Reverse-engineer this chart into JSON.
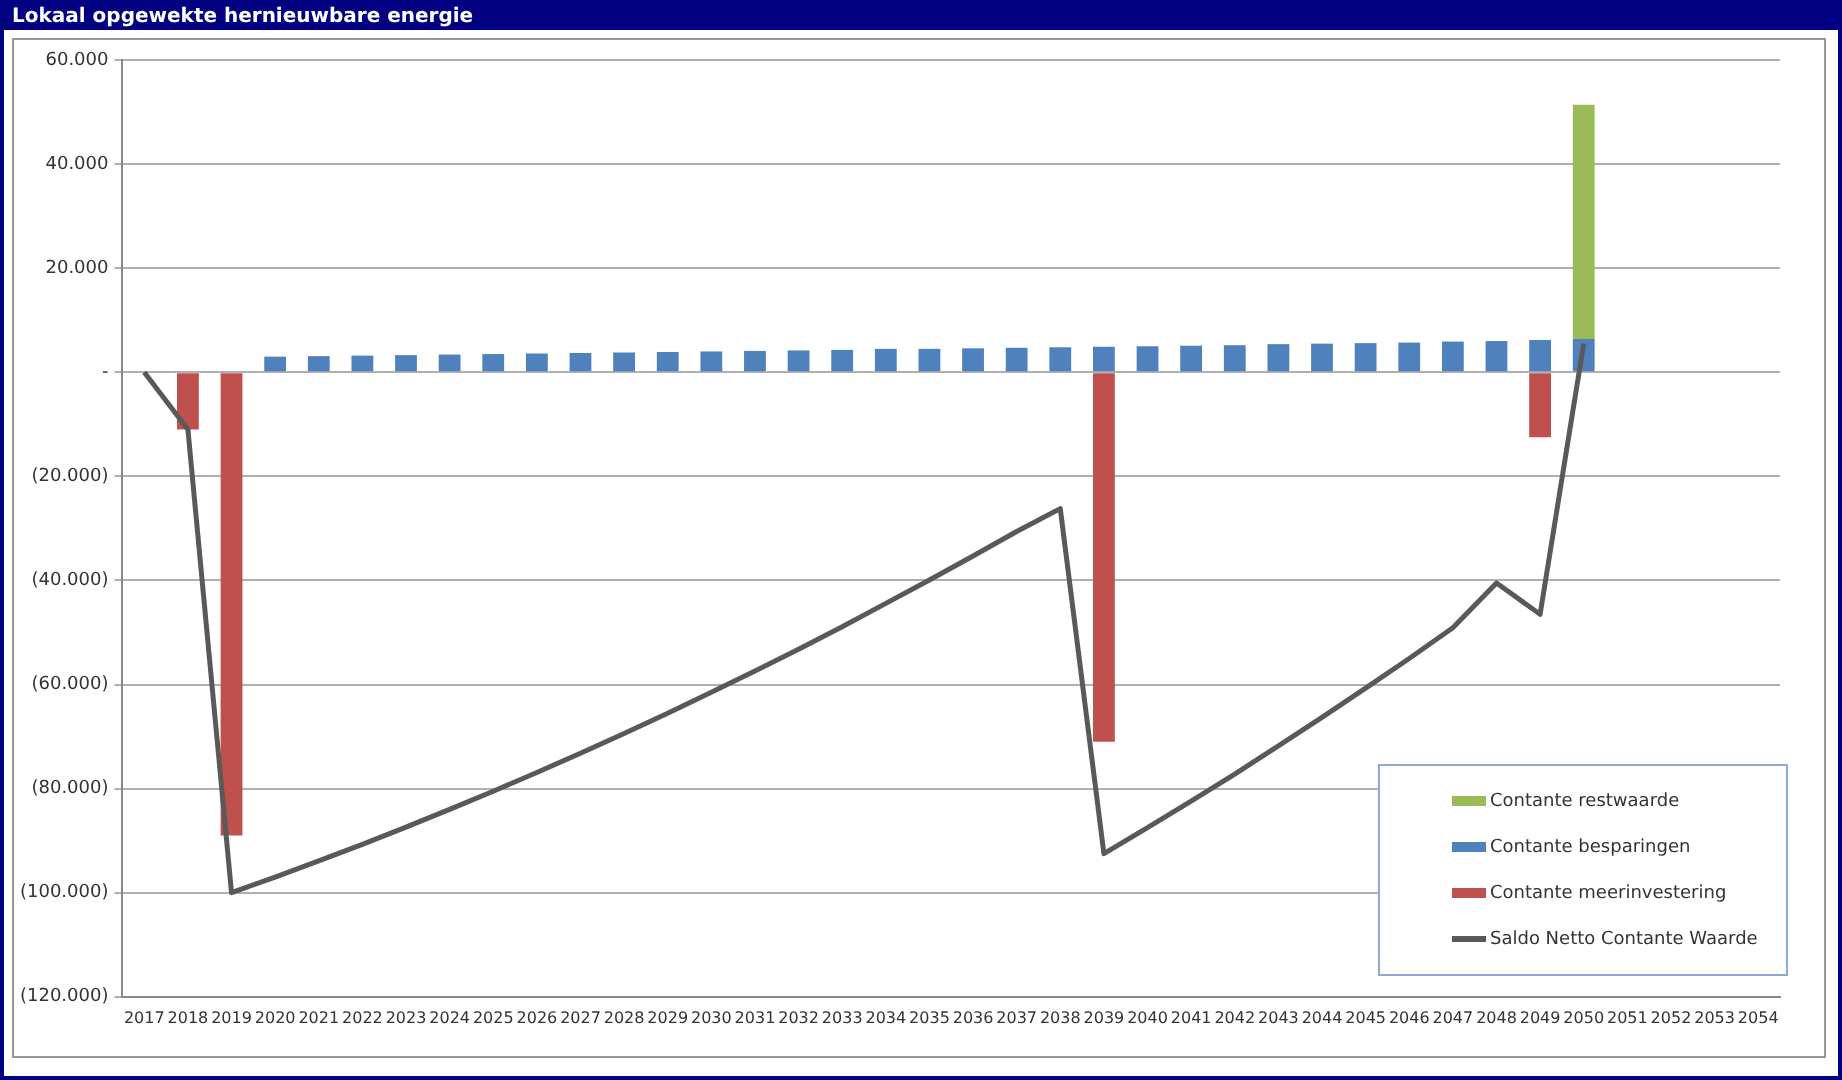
{
  "chart_data": {
    "type": "bar",
    "title": "Lokaal opgewekte hernieuwbare energie",
    "categories": [
      "2017",
      "2018",
      "2019",
      "2020",
      "2021",
      "2022",
      "2023",
      "2024",
      "2025",
      "2026",
      "2027",
      "2028",
      "2029",
      "2030",
      "2031",
      "2032",
      "2033",
      "2034",
      "2035",
      "2036",
      "2037",
      "2038",
      "2039",
      "2040",
      "2041",
      "2042",
      "2043",
      "2044",
      "2045",
      "2046",
      "2047",
      "2048",
      "2049",
      "2050",
      "2051",
      "2052",
      "2053",
      "2054"
    ],
    "stacked": true,
    "series": [
      {
        "name": "Contante meerinvestering",
        "color": "#c0504d",
        "values": [
          null,
          -11000,
          -89000,
          null,
          null,
          null,
          null,
          null,
          null,
          null,
          null,
          null,
          null,
          null,
          null,
          null,
          null,
          null,
          null,
          null,
          null,
          null,
          -71000,
          null,
          null,
          null,
          null,
          null,
          null,
          null,
          null,
          null,
          -12500,
          null,
          null,
          null,
          null,
          null
        ]
      },
      {
        "name": "Contante besparingen",
        "color": "#4f81bd",
        "values": [
          null,
          null,
          null,
          3000,
          3100,
          3200,
          3300,
          3400,
          3500,
          3600,
          3700,
          3800,
          3900,
          4000,
          4100,
          4200,
          4300,
          4500,
          4500,
          4600,
          4700,
          4800,
          4900,
          5000,
          5100,
          5200,
          5400,
          5500,
          5600,
          5700,
          5900,
          6000,
          6200,
          6400,
          null,
          null,
          null,
          null
        ]
      },
      {
        "name": "Contante restwaarde",
        "color": "#9bbb59",
        "values": [
          null,
          null,
          null,
          null,
          null,
          null,
          null,
          null,
          null,
          null,
          null,
          null,
          null,
          null,
          null,
          null,
          null,
          null,
          null,
          null,
          null,
          null,
          null,
          null,
          null,
          null,
          null,
          null,
          null,
          null,
          null,
          null,
          null,
          45000,
          null,
          null,
          null,
          null
        ]
      },
      {
        "name": "Saldo Netto Contante Waarde",
        "type": "line",
        "color": "#595959",
        "values": [
          0,
          -11000,
          -100000,
          -97000,
          -93900,
          -90700,
          -87400,
          -84000,
          -80500,
          -76900,
          -73200,
          -69400,
          -65500,
          -61500,
          -57400,
          -53200,
          -48900,
          -44400,
          -39900,
          -35300,
          -30600,
          -26200,
          -92500,
          -87500,
          -82400,
          -77200,
          -71800,
          -66300,
          -60700,
          -55000,
          -49100,
          -40500,
          -46500,
          5500,
          null,
          null,
          null,
          null
        ]
      }
    ],
    "ylim": [
      -120000,
      60000
    ],
    "yticks": [
      {
        "value": -120000,
        "label": "(120.000)"
      },
      {
        "value": -100000,
        "label": "(100.000)"
      },
      {
        "value": -80000,
        "label": "(80.000)"
      },
      {
        "value": -60000,
        "label": "(60.000)"
      },
      {
        "value": -40000,
        "label": "(40.000)"
      },
      {
        "value": -20000,
        "label": "(20.000)"
      },
      {
        "value": 0,
        "label": "-"
      },
      {
        "value": 20000,
        "label": "20.000"
      },
      {
        "value": 40000,
        "label": "40.000"
      },
      {
        "value": 60000,
        "label": "60.000"
      }
    ],
    "grid": "y",
    "legend": "bottom right",
    "marker": "none"
  }
}
